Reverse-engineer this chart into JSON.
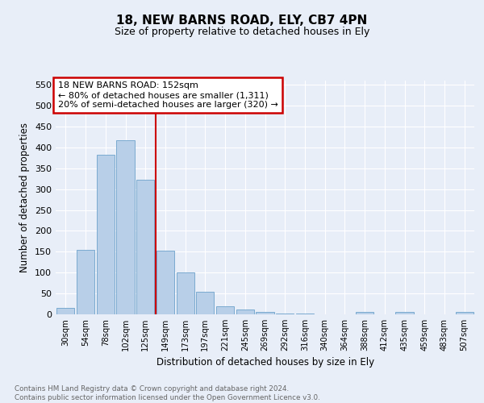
{
  "title1": "18, NEW BARNS ROAD, ELY, CB7 4PN",
  "title2": "Size of property relative to detached houses in Ely",
  "xlabel": "Distribution of detached houses by size in Ely",
  "ylabel": "Number of detached properties",
  "bar_labels": [
    "30sqm",
    "54sqm",
    "78sqm",
    "102sqm",
    "125sqm",
    "149sqm",
    "173sqm",
    "197sqm",
    "221sqm",
    "245sqm",
    "269sqm",
    "292sqm",
    "316sqm",
    "340sqm",
    "364sqm",
    "388sqm",
    "412sqm",
    "435sqm",
    "459sqm",
    "483sqm",
    "507sqm"
  ],
  "bar_values": [
    15,
    155,
    382,
    418,
    322,
    152,
    100,
    55,
    20,
    12,
    5,
    2,
    1,
    0,
    0,
    5,
    0,
    5,
    0,
    0,
    5
  ],
  "bar_color": "#b8cfe8",
  "bar_edge_color": "#7aaad0",
  "property_line_x": 4.5,
  "annotation_line1": "18 NEW BARNS ROAD: 152sqm",
  "annotation_line2": "← 80% of detached houses are smaller (1,311)",
  "annotation_line3": "20% of semi-detached houses are larger (320) →",
  "annotation_box_facecolor": "#ffffff",
  "annotation_box_edgecolor": "#cc0000",
  "vline_color": "#cc0000",
  "ylim": [
    0,
    560
  ],
  "yticks": [
    0,
    50,
    100,
    150,
    200,
    250,
    300,
    350,
    400,
    450,
    500,
    550
  ],
  "footer_line1": "Contains HM Land Registry data © Crown copyright and database right 2024.",
  "footer_line2": "Contains public sector information licensed under the Open Government Licence v3.0.",
  "bg_color": "#e8eef8",
  "plot_bg_color": "#e8eef8",
  "grid_color": "#ffffff"
}
